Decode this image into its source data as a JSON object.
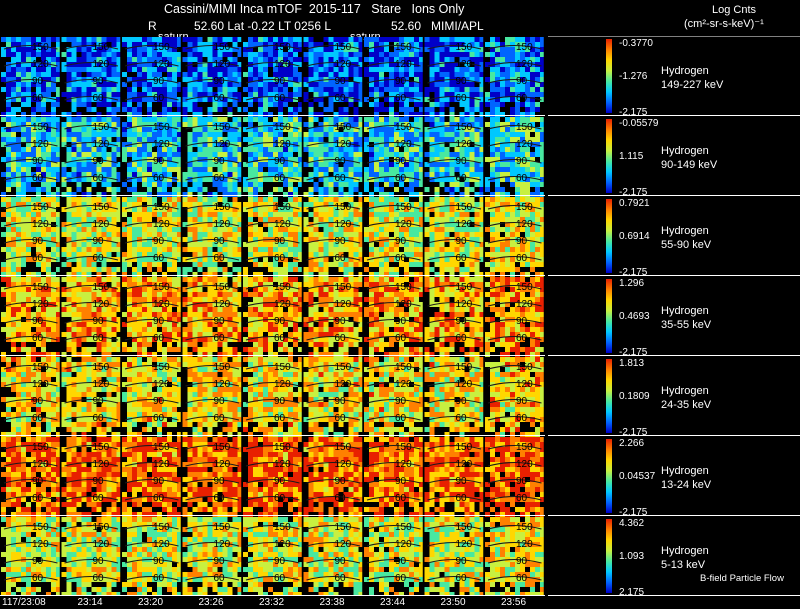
{
  "header": {
    "title": "Cassini/MIMI Inca mTOF  2015-117   Stare   Ions Only",
    "r_label": "R",
    "position_a": "52.60 Lat -0.22 LT 0256 L",
    "position_b": "52.60   MIMI/APL",
    "saturn_label": "saturn"
  },
  "legend": {
    "title": "Log Cnts",
    "units": "(cm²-sr-s-keV)⁻¹"
  },
  "footer": {
    "bfield_label": "B-field Particle Flow"
  },
  "chart_data": {
    "type": "heatmap",
    "time_ticks": [
      "117/23:08",
      "23:14",
      "23:20",
      "23:26",
      "23:32",
      "23:38",
      "23:44",
      "23:50",
      "23:56"
    ],
    "latitude_contours": [
      "150",
      "120",
      "90",
      "60"
    ],
    "panels": [
      {
        "species": "Hydrogen",
        "energy": "149-227 keV",
        "max_label": "-0.3770",
        "mid_label": "-1.276",
        "min_label": "-2.175",
        "intensity": 0.18
      },
      {
        "species": "Hydrogen",
        "energy": "90-149 keV",
        "max_label": "-0.05579",
        "mid_label": "1.115",
        "min_label": "-2.175",
        "intensity": 0.34
      },
      {
        "species": "Hydrogen",
        "energy": "55-90 keV",
        "max_label": "0.7921",
        "mid_label": "0.6914",
        "min_label": "-2.175",
        "intensity": 0.6
      },
      {
        "species": "Hydrogen",
        "energy": "35-55 keV",
        "max_label": "1.296",
        "mid_label": "0.4693",
        "min_label": "-2.175",
        "intensity": 0.74
      },
      {
        "species": "Hydrogen",
        "energy": "24-35 keV",
        "max_label": "1.813",
        "mid_label": "0.1809",
        "min_label": "-2.175",
        "intensity": 0.66
      },
      {
        "species": "Hydrogen",
        "energy": "13-24 keV",
        "max_label": "2.266",
        "mid_label": "0.04537",
        "min_label": "-2.175",
        "intensity": 0.84
      },
      {
        "species": "Hydrogen",
        "energy": "5-13 keV",
        "max_label": "4.362",
        "mid_label": "1.093",
        "min_label": "2.175",
        "intensity": 0.6
      }
    ]
  },
  "colors": {
    "background": "#000000",
    "separator": "#ffffff",
    "contour": "#1a1a1a",
    "colormap": [
      "#0000c8",
      "#0064ff",
      "#00c8ff",
      "#48e8a0",
      "#c8f040",
      "#ffd700",
      "#ff8000",
      "#e82000"
    ]
  }
}
